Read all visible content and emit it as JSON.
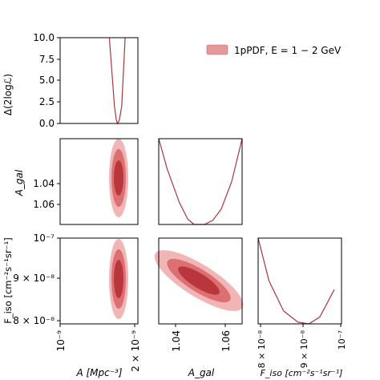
{
  "legend": {
    "label": "1pPDF, E = 1 − 2 GeV",
    "color": "#e4999b"
  },
  "colors": {
    "contour_outer": "#f2b5b6",
    "contour_mid": "#dc6f72",
    "contour_inner": "#b9373c",
    "line": "#a9373b"
  },
  "axis_labels": {
    "x_A": "A  [Mpc⁻³]",
    "x_Agal": "A_gal",
    "x_Fiso": "F_iso  [cm⁻²s⁻¹sr⁻¹]",
    "y_loglike": "Δ(2logℒ)",
    "y_Agal": "A_gal",
    "y_Fiso": "F_iso  [cm⁻²s⁻¹sr⁻¹]"
  },
  "ticks": {
    "loglike": [
      "0.0",
      "2.5",
      "5.0",
      "7.5",
      "10.0"
    ],
    "Agal_y": [
      "1.04",
      "1.06"
    ],
    "Fiso_y": [
      "10⁻⁷",
      "9 × 10⁻⁸",
      "8 × 10⁻⁸"
    ],
    "A_x": [
      "10⁻⁹",
      "2 × 10⁻⁹"
    ],
    "Agal_x": [
      "1.04",
      "1.06"
    ],
    "Fiso_x": [
      "8 × 10⁻⁸",
      "9 × 10⁻⁸",
      "10⁻⁷"
    ]
  },
  "chart_data": [
    {
      "type": "line",
      "panel": "A vs Δ(2logL)",
      "xscale": "log",
      "xlim": [
        1e-09,
        2.1e-09
      ],
      "ylim": [
        0,
        10
      ],
      "x": [
        1.6e-09,
        1.68e-09,
        1.71e-09,
        1.73e-09,
        1.76e-09,
        1.8e-09,
        1.86e-09
      ],
      "y": [
        10.0,
        2.0,
        0.4,
        0.0,
        0.4,
        2.0,
        10.0
      ]
    },
    {
      "type": "line",
      "panel": "A_gal vs Δ(2logL)",
      "xlim": [
        1.03,
        1.07
      ],
      "x": [
        1.03,
        1.034,
        1.04,
        1.044,
        1.047,
        1.052,
        1.056,
        1.06,
        1.065,
        1.07
      ],
      "y": [
        10.0,
        6.5,
        2.5,
        0.6,
        0.0,
        0.0,
        0.5,
        1.8,
        5.0,
        10.0
      ]
    },
    {
      "type": "line",
      "panel": "F_iso vs Δ(2logL)",
      "xlim": [
        7.9e-08,
        1.02e-07
      ],
      "x": [
        7.9e-08,
        8.2e-08,
        8.6e-08,
        9e-08,
        9.3e-08,
        9.6e-08,
        1e-07
      ],
      "y": [
        10.0,
        5.0,
        1.5,
        0.2,
        0.0,
        0.8,
        4.0
      ]
    },
    {
      "type": "contour",
      "panel": "A vs A_gal",
      "xlim": [
        1e-09,
        2.1e-09
      ],
      "ylim": [
        1.03,
        1.07
      ],
      "center": [
        1.73e-09,
        1.052
      ],
      "levels": [
        "1σ",
        "2σ",
        "3σ"
      ]
    },
    {
      "type": "contour",
      "panel": "A vs F_iso",
      "xlim": [
        1e-09,
        2.1e-09
      ],
      "ylim": [
        7.9e-08,
        1.02e-07
      ],
      "center": [
        1.73e-09,
        9e-08
      ],
      "levels": [
        "1σ",
        "2σ",
        "3σ"
      ]
    },
    {
      "type": "contour",
      "panel": "A_gal vs F_iso",
      "xlim": [
        1.03,
        1.07
      ],
      "ylim": [
        7.9e-08,
        1.02e-07
      ],
      "center": [
        1.052,
        9e-08
      ],
      "correlation": "negative",
      "levels": [
        "1σ",
        "2σ",
        "3σ"
      ]
    }
  ]
}
